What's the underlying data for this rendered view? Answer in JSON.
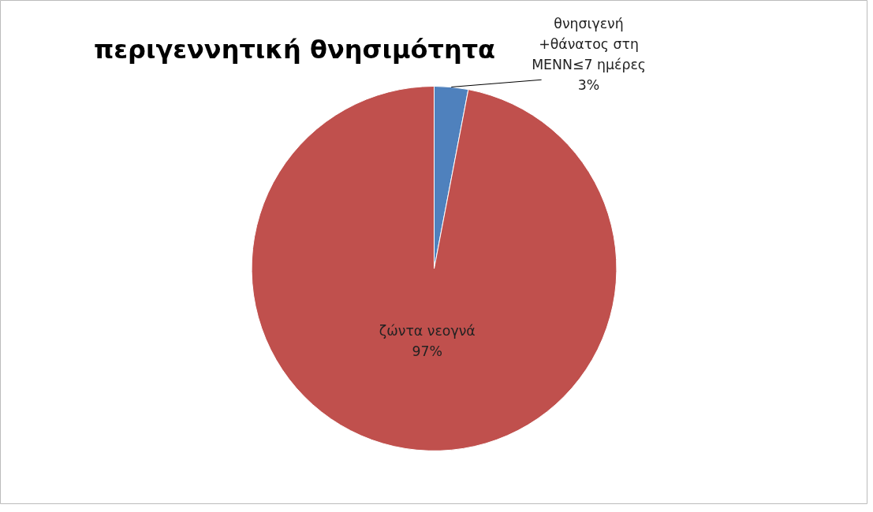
{
  "chart_data": {
    "type": "pie",
    "title": "περιγεννητική θνησιμότητα",
    "categories": [
      "θνησιγενή +θάνατος στη ΜΕΝΝ≤7 ημέρες",
      "ζώντα νεογνά"
    ],
    "values": [
      3,
      97
    ],
    "colors": [
      "#4f81bd",
      "#c0504d"
    ],
    "value_labels": [
      "3%",
      "97%"
    ]
  }
}
